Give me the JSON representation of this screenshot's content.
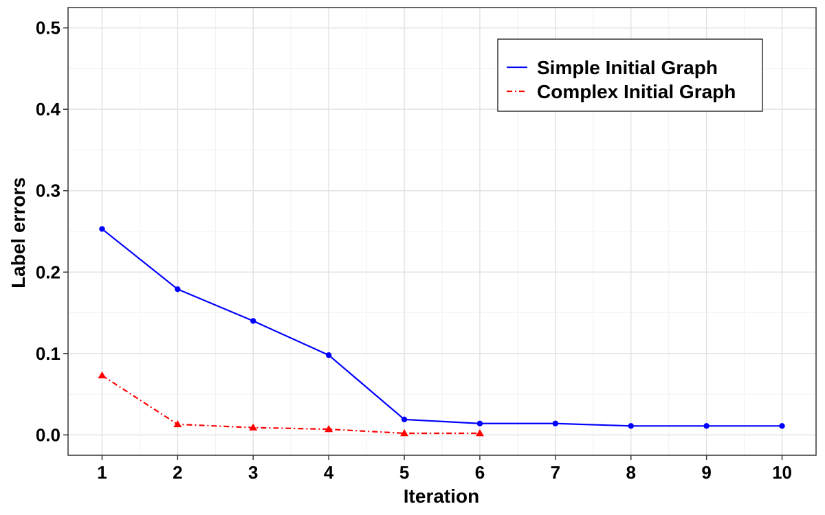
{
  "chart_data": {
    "type": "line",
    "x": [
      1,
      2,
      3,
      4,
      5,
      6,
      7,
      8,
      9,
      10
    ],
    "xlabel": "Iteration",
    "ylabel": "Label errors",
    "xlim": [
      0.55,
      10.45
    ],
    "ylim": [
      -0.025,
      0.525
    ],
    "x_ticks": [
      1,
      2,
      3,
      4,
      5,
      6,
      7,
      8,
      9,
      10
    ],
    "x_tick_labels": [
      "1",
      "2",
      "3",
      "4",
      "5",
      "6",
      "7",
      "8",
      "9",
      "10"
    ],
    "y_ticks": [
      0.0,
      0.1,
      0.2,
      0.3,
      0.4,
      0.5
    ],
    "y_tick_labels": [
      "0.0",
      "0.1",
      "0.2",
      "0.3",
      "0.4",
      "0.5"
    ],
    "grid": true,
    "legend_position": "top-right",
    "series": [
      {
        "name": "Simple Initial Graph",
        "color": "#0000ff",
        "line_style": "solid",
        "marker": "circle",
        "x": [
          1,
          2,
          3,
          4,
          5,
          6,
          7,
          8,
          9,
          10
        ],
        "values": [
          0.253,
          0.179,
          0.14,
          0.098,
          0.019,
          0.014,
          0.014,
          0.011,
          0.011,
          0.011
        ]
      },
      {
        "name": "Complex Initial Graph",
        "color": "#ff0000",
        "line_style": "dashdot",
        "marker": "triangle",
        "x": [
          1,
          2,
          3,
          4,
          5,
          6
        ],
        "values": [
          0.073,
          0.013,
          0.009,
          0.007,
          0.002,
          0.002
        ]
      }
    ]
  }
}
